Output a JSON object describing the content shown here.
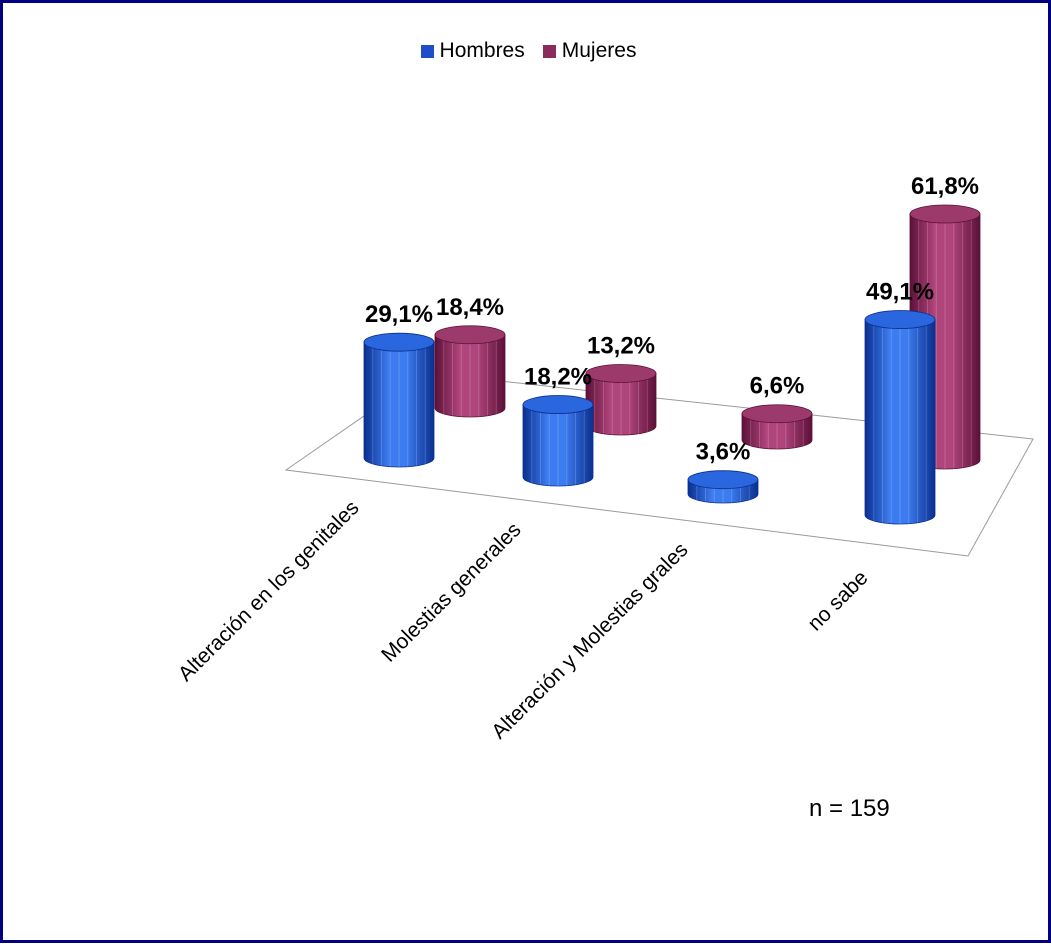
{
  "chart_data": {
    "type": "bar",
    "title": "",
    "xlabel": "",
    "ylabel": "",
    "categories": [
      "Alteración en los genitales",
      "Molestias generales",
      "Alteración y Molestias grales",
      "no sabe"
    ],
    "series": [
      {
        "name": "Hombres",
        "values": [
          29.1,
          18.2,
          3.6,
          49.1
        ],
        "labels": [
          "29,1%",
          "18,2%",
          "3,6%",
          "49,1%"
        ],
        "color": "#1f4fc8"
      },
      {
        "name": "Mujeres",
        "values": [
          18.4,
          13.2,
          6.6,
          61.8
        ],
        "labels": [
          "18,4%",
          "13,2%",
          "6,6%",
          "61,8%"
        ],
        "color": "#8b2a5c"
      }
    ],
    "ylim": [
      0,
      70
    ],
    "legend_position": "top",
    "grid": false,
    "annotation": "n = 159"
  }
}
